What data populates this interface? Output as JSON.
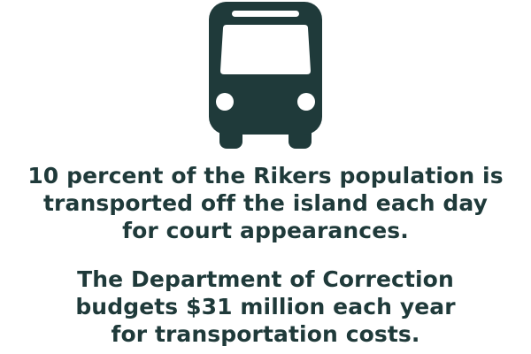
{
  "icon": {
    "name": "bus-icon",
    "color": "#1f3a3a"
  },
  "facts": [
    {
      "lines": [
        "10 percent of the Rikers population is",
        "transported off the island each day",
        "for court appearances."
      ]
    },
    {
      "lines": [
        "The Department of Correction",
        "budgets $31 million each year",
        "for transportation costs."
      ]
    }
  ]
}
